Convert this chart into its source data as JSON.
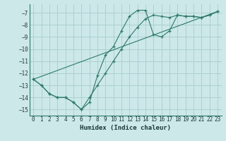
{
  "bg_color": "#cce8e8",
  "grid_color": "#aacccc",
  "line_color": "#2d7a6a",
  "xlabel": "Humidex (Indice chaleur)",
  "xlim": [
    -0.5,
    23.5
  ],
  "ylim": [
    -15.5,
    -6.3
  ],
  "yticks": [
    -15,
    -14,
    -13,
    -12,
    -11,
    -10,
    -9,
    -8,
    -7
  ],
  "xticks": [
    0,
    1,
    2,
    3,
    4,
    5,
    6,
    7,
    8,
    9,
    10,
    11,
    12,
    13,
    14,
    15,
    16,
    17,
    18,
    19,
    20,
    21,
    22,
    23
  ],
  "line1_x": [
    0,
    1,
    2,
    3,
    4,
    5,
    6,
    7,
    8,
    9,
    10,
    11,
    12,
    13,
    14,
    15,
    16,
    17,
    18,
    19,
    20,
    21,
    22,
    23
  ],
  "line1_y": [
    -12.5,
    -13.0,
    -13.7,
    -14.0,
    -14.0,
    -14.4,
    -15.0,
    -14.4,
    -12.2,
    -10.5,
    -9.8,
    -8.5,
    -7.3,
    -6.8,
    -6.8,
    -8.8,
    -9.0,
    -8.5,
    -7.2,
    -7.3,
    -7.3,
    -7.4,
    -7.2,
    -6.9
  ],
  "line2_x": [
    0,
    1,
    2,
    3,
    4,
    5,
    6,
    7,
    8,
    9,
    10,
    11,
    12,
    13,
    14,
    15,
    16,
    17,
    18,
    19,
    20,
    21,
    22,
    23
  ],
  "line2_y": [
    -12.5,
    -13.0,
    -13.7,
    -14.0,
    -14.0,
    -14.4,
    -15.0,
    -14.0,
    -13.0,
    -12.0,
    -11.0,
    -10.0,
    -9.0,
    -8.2,
    -7.5,
    -7.2,
    -7.3,
    -7.4,
    -7.2,
    -7.3,
    -7.3,
    -7.4,
    -7.2,
    -6.9
  ],
  "line3_x": [
    0,
    23
  ],
  "line3_y": [
    -12.5,
    -6.9
  ]
}
